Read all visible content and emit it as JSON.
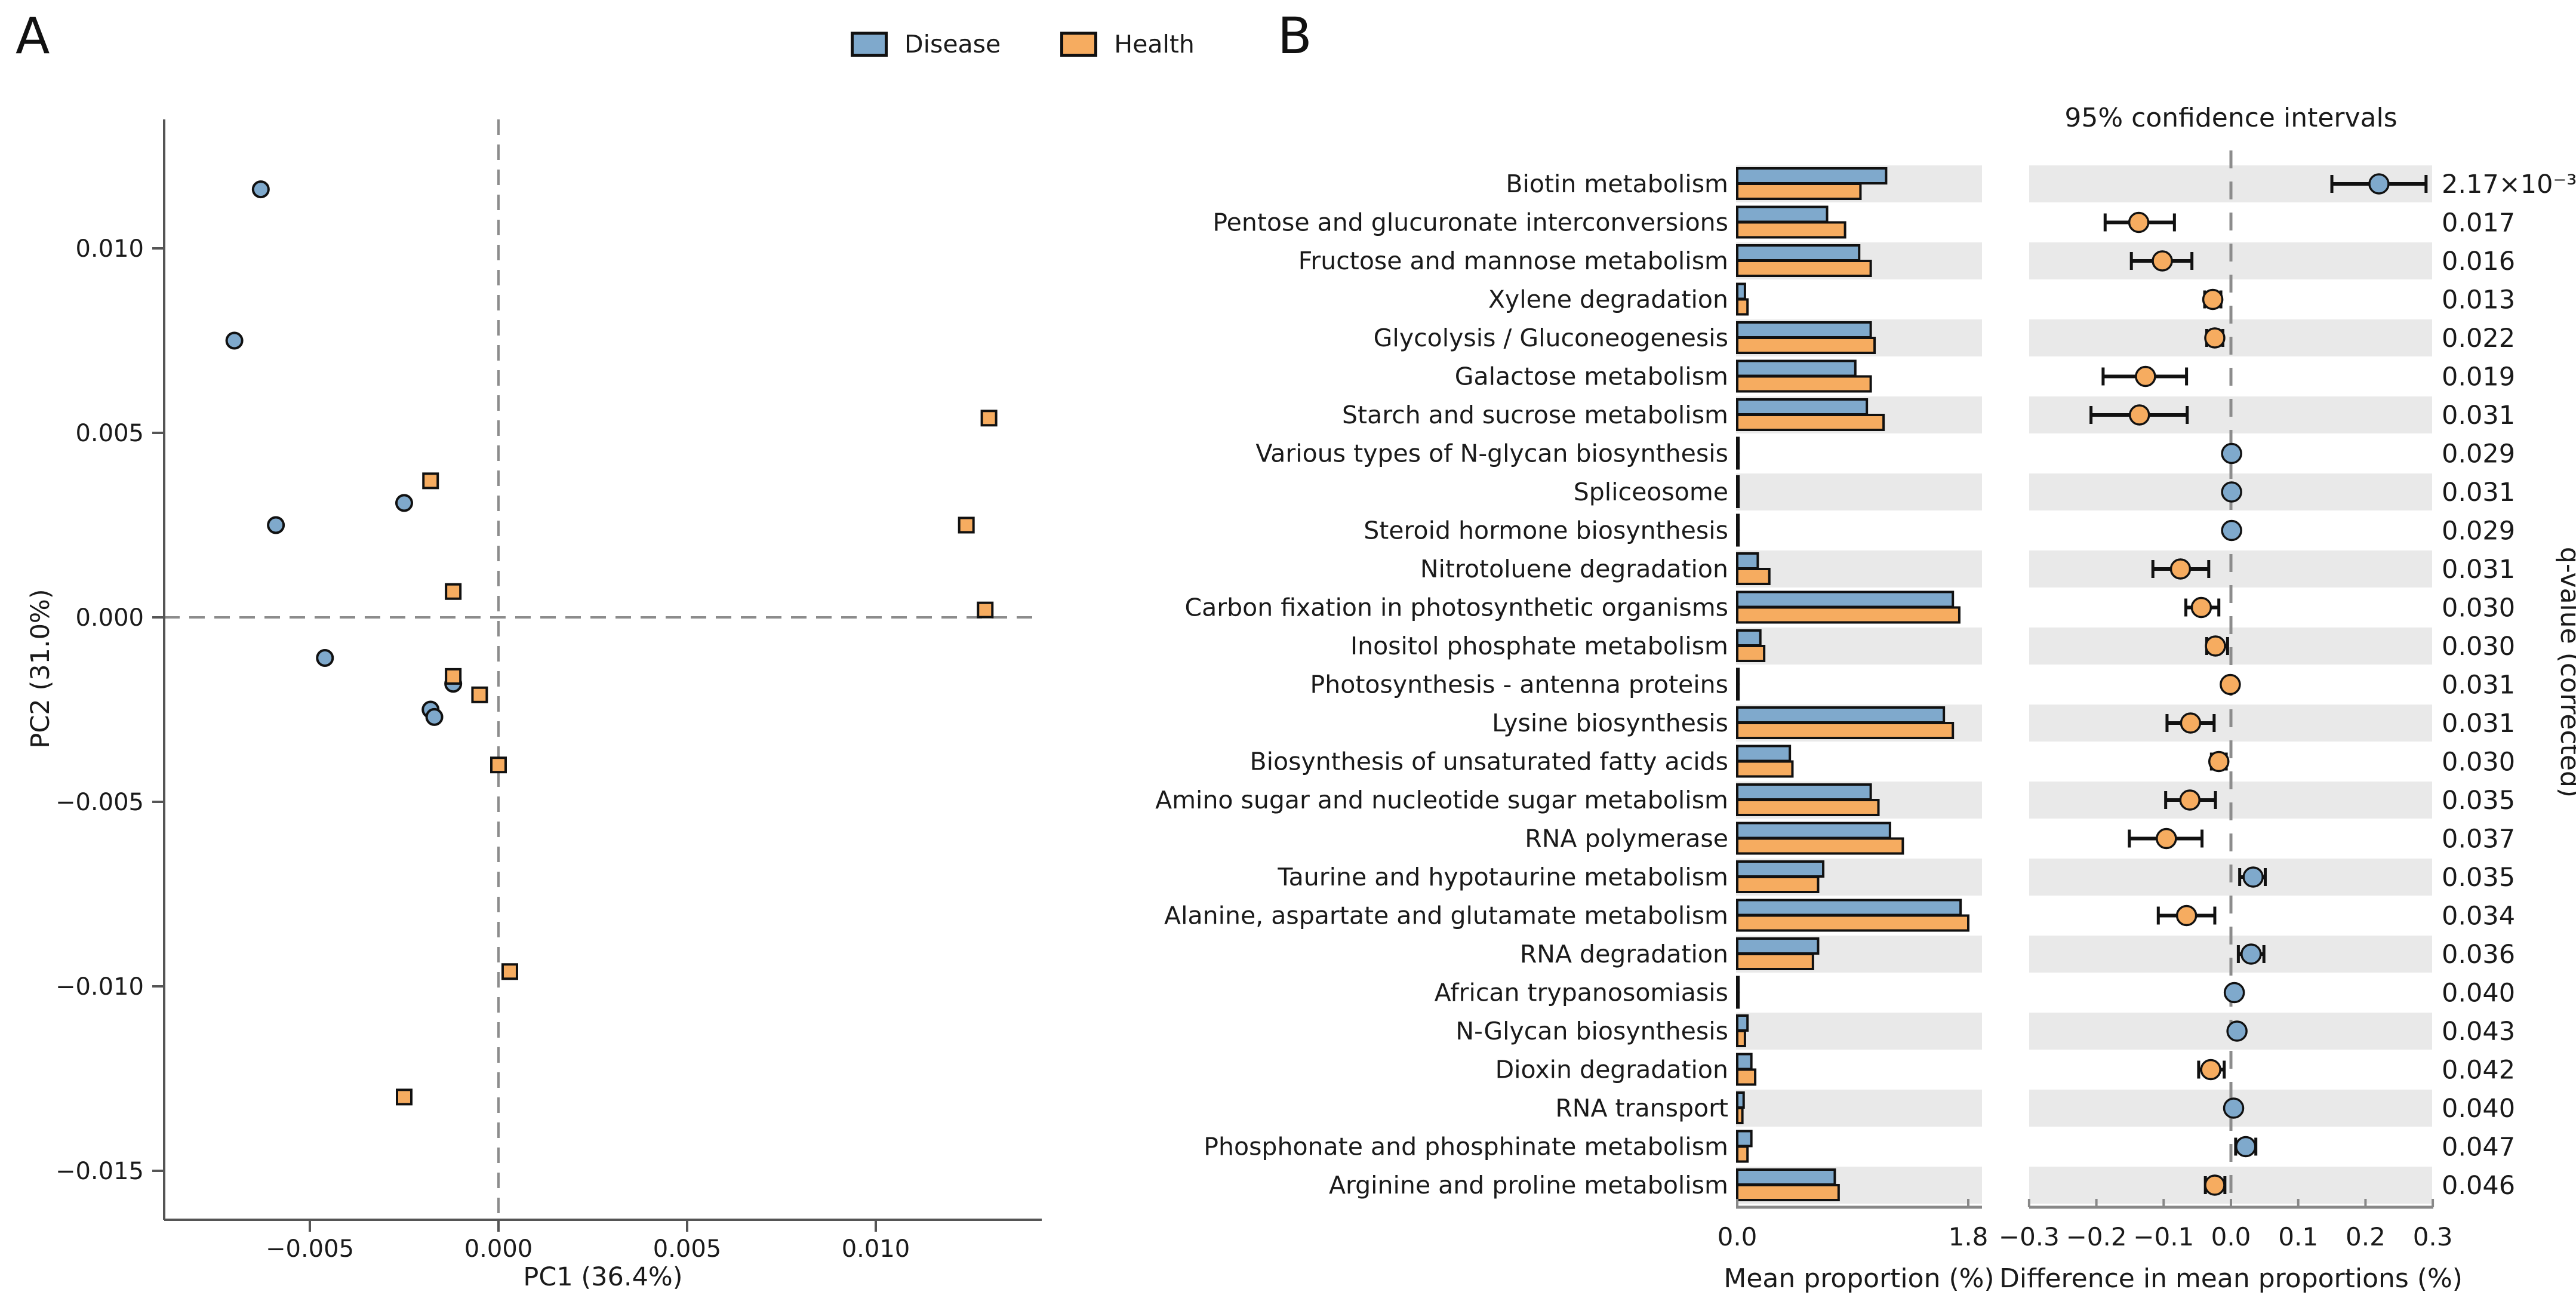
{
  "panels": {
    "a_label": "A",
    "b_label": "B"
  },
  "legend": {
    "items": [
      {
        "label": "Disease",
        "color": "#7FA9CC"
      },
      {
        "label": "Health",
        "color": "#F6AC60"
      }
    ]
  },
  "colors": {
    "disease": "#7FA9CC",
    "health": "#F6AC60",
    "band": "#E9E9E9",
    "dash": "#8C8C8C",
    "axis": "#555555",
    "marker_edge": "#111111",
    "text": "#1A1A1A"
  },
  "chart_data": [
    {
      "id": "pca-scatter",
      "type": "scatter",
      "panel": "A",
      "xlabel": "PC1 (36.4%)",
      "ylabel": "PC2 (31.0%)",
      "xlim": [
        -0.00885,
        0.0144
      ],
      "ylim": [
        -0.01633,
        0.0135
      ],
      "xticks": [
        -0.005,
        0.0,
        0.005,
        0.01
      ],
      "yticks": [
        0.01,
        0.005,
        0.0,
        -0.005,
        -0.01,
        -0.015
      ],
      "zero_lines": "dashed",
      "grid": false,
      "series": [
        {
          "name": "Disease",
          "marker": "circle",
          "color": "#7FA9CC",
          "points": [
            [
              -0.0063,
              0.0116
            ],
            [
              -0.007,
              0.0075
            ],
            [
              -0.0059,
              0.0025
            ],
            [
              -0.0025,
              0.0031
            ],
            [
              -0.0046,
              -0.0011
            ],
            [
              -0.0012,
              -0.0018
            ],
            [
              -0.0018,
              -0.0025
            ],
            [
              -0.0017,
              -0.0027
            ]
          ]
        },
        {
          "name": "Health",
          "marker": "square",
          "color": "#F6AC60",
          "points": [
            [
              -0.0018,
              0.0037
            ],
            [
              0.013,
              0.0054
            ],
            [
              0.0124,
              0.0025
            ],
            [
              -0.0012,
              0.0007
            ],
            [
              0.0129,
              0.0002
            ],
            [
              -0.0012,
              -0.0016
            ],
            [
              -0.0005,
              -0.0021
            ],
            [
              0.0,
              -0.004
            ],
            [
              0.0003,
              -0.0096
            ],
            [
              -0.0025,
              -0.013
            ]
          ]
        }
      ]
    },
    {
      "id": "extended-error-bar",
      "type": "bar",
      "subtype": "extended_error_bar",
      "panel": "B",
      "title": "95% confidence intervals",
      "bar_xlabel": "Mean proportion (%)",
      "bar_xlim": [
        0.0,
        1.8
      ],
      "bar_xticks": [
        0.0,
        1.8
      ],
      "ci_xlabel": "Difference in mean proportions (%)",
      "ci_xlim": [
        -0.3,
        0.3
      ],
      "ci_xticks": [
        -0.3,
        -0.2,
        -0.1,
        0.0,
        0.1,
        0.2,
        0.3
      ],
      "right_axis_label": "q-value (corrected)",
      "series_names": [
        "Disease",
        "Health"
      ],
      "legend_position": "top",
      "rows": [
        {
          "name": "Biotin metabolism",
          "disease": 1.16,
          "health": 0.96,
          "diff": 0.22,
          "ci": [
            0.15,
            0.29
          ],
          "dot": "disease",
          "q": "2.17×10⁻³"
        },
        {
          "name": "Pentose and glucuronate interconversions",
          "disease": 0.7,
          "health": 0.84,
          "diff": -0.137,
          "ci": [
            -0.187,
            -0.084
          ],
          "dot": "health",
          "q": "0.017"
        },
        {
          "name": "Fructose and mannose metabolism",
          "disease": 0.95,
          "health": 1.04,
          "diff": -0.102,
          "ci": [
            -0.148,
            -0.058
          ],
          "dot": "health",
          "q": "0.016"
        },
        {
          "name": "Xylene degradation",
          "disease": 0.06,
          "health": 0.08,
          "diff": -0.027,
          "ci": [
            -0.039,
            -0.015
          ],
          "dot": "health",
          "q": "0.013"
        },
        {
          "name": "Glycolysis / Gluconeogenesis",
          "disease": 1.04,
          "health": 1.07,
          "diff": -0.024,
          "ci": [
            -0.036,
            -0.012
          ],
          "dot": "health",
          "q": "0.022"
        },
        {
          "name": "Galactose metabolism",
          "disease": 0.92,
          "health": 1.04,
          "diff": -0.127,
          "ci": [
            -0.19,
            -0.066
          ],
          "dot": "health",
          "q": "0.019"
        },
        {
          "name": "Starch and sucrose metabolism",
          "disease": 1.01,
          "health": 1.14,
          "diff": -0.136,
          "ci": [
            -0.208,
            -0.065
          ],
          "dot": "health",
          "q": "0.031"
        },
        {
          "name": "Various types of N-glycan biosynthesis",
          "disease": 0.01,
          "health": 0.01,
          "diff": 0.001,
          "ci": null,
          "dot": "disease",
          "q": "0.029"
        },
        {
          "name": "Spliceosome",
          "disease": 0.01,
          "health": 0.01,
          "diff": 0.001,
          "ci": null,
          "dot": "disease",
          "q": "0.031"
        },
        {
          "name": "Steroid hormone biosynthesis",
          "disease": 0.01,
          "health": 0.01,
          "diff": 0.001,
          "ci": null,
          "dot": "disease",
          "q": "0.029"
        },
        {
          "name": "Nitrotoluene degradation",
          "disease": 0.16,
          "health": 0.25,
          "diff": -0.075,
          "ci": [
            -0.116,
            -0.033
          ],
          "dot": "health",
          "q": "0.031"
        },
        {
          "name": "Carbon fixation in photosynthetic organisms",
          "disease": 1.68,
          "health": 1.73,
          "diff": -0.044,
          "ci": [
            -0.067,
            -0.018
          ],
          "dot": "health",
          "q": "0.030"
        },
        {
          "name": "Inositol phosphate metabolism",
          "disease": 0.18,
          "health": 0.21,
          "diff": -0.023,
          "ci": [
            -0.036,
            -0.005
          ],
          "dot": "health",
          "q": "0.030"
        },
        {
          "name": "Photosynthesis - antenna proteins",
          "disease": 0.01,
          "health": 0.01,
          "diff": -0.001,
          "ci": null,
          "dot": "health",
          "q": "0.031"
        },
        {
          "name": "Lysine biosynthesis",
          "disease": 1.61,
          "health": 1.68,
          "diff": -0.06,
          "ci": [
            -0.095,
            -0.025
          ],
          "dot": "health",
          "q": "0.031"
        },
        {
          "name": "Biosynthesis of unsaturated fatty acids",
          "disease": 0.41,
          "health": 0.43,
          "diff": -0.018,
          "ci": [
            -0.029,
            -0.007
          ],
          "dot": "health",
          "q": "0.030"
        },
        {
          "name": "Amino sugar and nucleotide sugar metabolism",
          "disease": 1.04,
          "health": 1.1,
          "diff": -0.061,
          "ci": [
            -0.097,
            -0.023
          ],
          "dot": "health",
          "q": "0.035"
        },
        {
          "name": "RNA polymerase",
          "disease": 1.19,
          "health": 1.29,
          "diff": -0.096,
          "ci": [
            -0.151,
            -0.043
          ],
          "dot": "health",
          "q": "0.037"
        },
        {
          "name": "Taurine and hypotaurine metabolism",
          "disease": 0.67,
          "health": 0.63,
          "diff": 0.033,
          "ci": [
            0.013,
            0.051
          ],
          "dot": "disease",
          "q": "0.035"
        },
        {
          "name": "Alanine, aspartate and glutamate metabolism",
          "disease": 1.74,
          "health": 1.8,
          "diff": -0.066,
          "ci": [
            -0.108,
            -0.024
          ],
          "dot": "health",
          "q": "0.034"
        },
        {
          "name": "RNA degradation",
          "disease": 0.63,
          "health": 0.59,
          "diff": 0.03,
          "ci": [
            0.011,
            0.049
          ],
          "dot": "disease",
          "q": "0.036"
        },
        {
          "name": "African trypanosomiasis",
          "disease": 0.01,
          "health": 0.01,
          "diff": 0.005,
          "ci": null,
          "dot": "disease",
          "q": "0.040"
        },
        {
          "name": "N-Glycan biosynthesis",
          "disease": 0.08,
          "health": 0.06,
          "diff": 0.009,
          "ci": null,
          "dot": "disease",
          "q": "0.043"
        },
        {
          "name": "Dioxin degradation",
          "disease": 0.11,
          "health": 0.14,
          "diff": -0.03,
          "ci": [
            -0.048,
            -0.01
          ],
          "dot": "health",
          "q": "0.042"
        },
        {
          "name": "RNA transport",
          "disease": 0.05,
          "health": 0.04,
          "diff": 0.004,
          "ci": null,
          "dot": "disease",
          "q": "0.040"
        },
        {
          "name": "Phosphonate and phosphinate metabolism",
          "disease": 0.11,
          "health": 0.08,
          "diff": 0.022,
          "ci": [
            0.007,
            0.037
          ],
          "dot": "disease",
          "q": "0.047"
        },
        {
          "name": "Arginine and proline metabolism",
          "disease": 0.76,
          "health": 0.79,
          "diff": -0.024,
          "ci": [
            -0.038,
            -0.009
          ],
          "dot": "health",
          "q": "0.046"
        }
      ]
    }
  ]
}
